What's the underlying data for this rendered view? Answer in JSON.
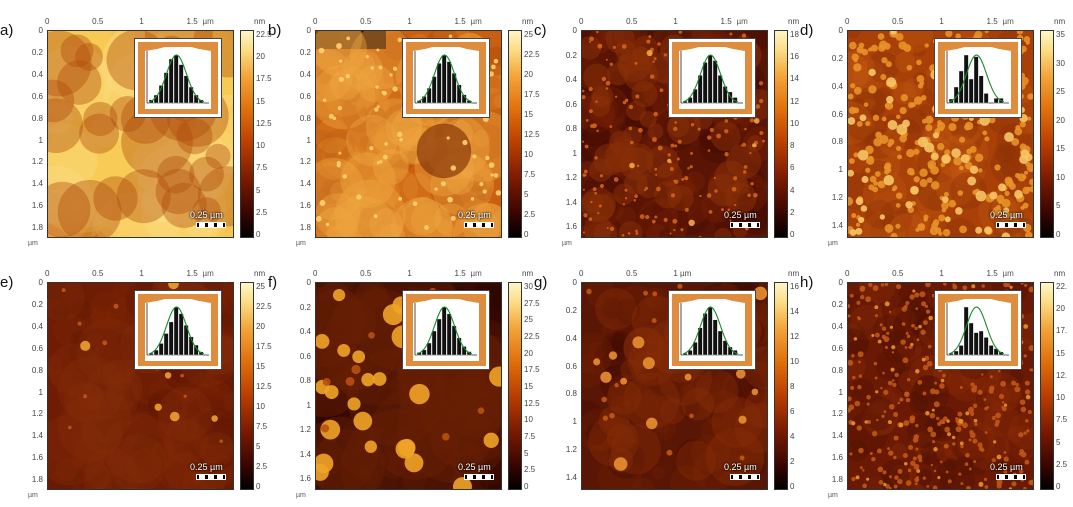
{
  "panels": [
    {
      "label": "a)",
      "x_unit_top": "µm",
      "x_unit_bottom": "µm",
      "x_ticks": [
        "0",
        "0.5",
        "1",
        "1.5"
      ],
      "y_ticks": [
        "0",
        "0.2",
        "0.4",
        "0.6",
        "0.8",
        "1",
        "1.2",
        "1.4",
        "1.6",
        "1.8"
      ],
      "cbar_unit": "nm",
      "cbar_ticks": [
        "22.5",
        "20",
        "17.5",
        "15",
        "12.5",
        "10",
        "7.5",
        "5",
        "2.5",
        "0"
      ],
      "scale_bar": "0.25 µm",
      "surface": "bright",
      "histogram": [
        4,
        10,
        22,
        38,
        55,
        60,
        48,
        34,
        20,
        10,
        4
      ]
    },
    {
      "label": "b)",
      "x_unit_top": "µm",
      "x_unit_bottom": "µm",
      "x_ticks": [
        "0",
        "0.5",
        "1",
        "1.5"
      ],
      "y_ticks": [
        "0",
        "0.2",
        "0.4",
        "0.6",
        "0.8",
        "1",
        "1.2",
        "1.4",
        "1.6",
        "1.8"
      ],
      "cbar_unit": "nm",
      "cbar_ticks": [
        "25",
        "22.5",
        "20",
        "17.5",
        "15",
        "12.5",
        "10",
        "7.5",
        "5",
        "2.5",
        "0"
      ],
      "scale_bar": "0.25 µm",
      "surface": "medium",
      "histogram": [
        3,
        8,
        18,
        32,
        48,
        58,
        50,
        36,
        22,
        10,
        3
      ]
    },
    {
      "label": "c)",
      "x_unit_top": "µm",
      "x_unit_bottom": "µm",
      "x_ticks": [
        "0",
        "0.5",
        "1",
        "1.5"
      ],
      "y_ticks": [
        "0",
        "0.2",
        "0.4",
        "0.6",
        "0.8",
        "1",
        "1.2",
        "1.4",
        "1.6"
      ],
      "cbar_unit": "nm",
      "cbar_ticks": [
        "18",
        "16",
        "14",
        "12",
        "10",
        "8",
        "6",
        "4",
        "2",
        "0"
      ],
      "scale_bar": "0.25 µm",
      "surface": "dark-grain",
      "histogram": [
        2,
        6,
        15,
        30,
        44,
        52,
        46,
        30,
        18,
        12,
        6
      ]
    },
    {
      "label": "d)",
      "x_unit_top": "µm",
      "x_unit_bottom": "µm",
      "x_ticks": [
        "0",
        "0.5",
        "1",
        "1.5"
      ],
      "y_ticks": [
        "0",
        "0.2",
        "0.4",
        "0.6",
        "0.8",
        "1",
        "1.2",
        "1.4"
      ],
      "cbar_unit": "nm",
      "cbar_ticks": [
        "35",
        "30",
        "25",
        "20",
        "15",
        "10",
        "5",
        "0"
      ],
      "scale_bar": "0.25 µm",
      "surface": "grains",
      "histogram": [
        5,
        20,
        40,
        60,
        30,
        58,
        34,
        12,
        0,
        6,
        6
      ]
    },
    {
      "label": "e)",
      "x_unit_top": "µm",
      "x_unit_bottom": "µm",
      "x_ticks": [
        "0",
        "0.5",
        "1",
        "1.5"
      ],
      "y_ticks": [
        "0",
        "0.2",
        "0.4",
        "0.6",
        "0.8",
        "1",
        "1.2",
        "1.4",
        "1.6",
        "1.8"
      ],
      "cbar_unit": "nm",
      "cbar_ticks": [
        "25",
        "22.5",
        "20",
        "17.5",
        "15",
        "12.5",
        "10",
        "7.5",
        "5",
        "2.5",
        "0"
      ],
      "scale_bar": "0.25 µm",
      "surface": "smooth-dots",
      "histogram": [
        2,
        6,
        14,
        26,
        40,
        58,
        50,
        36,
        22,
        12,
        4
      ]
    },
    {
      "label": "f)",
      "x_unit_top": "µm",
      "x_unit_bottom": "µm",
      "x_ticks": [
        "0",
        "0.5",
        "1",
        "1.5"
      ],
      "y_ticks": [
        "0",
        "0.2",
        "0.4",
        "0.6",
        "0.8",
        "1",
        "1.2",
        "1.4",
        "1.6"
      ],
      "cbar_unit": "nm",
      "cbar_ticks": [
        "30",
        "27.5",
        "25",
        "22.5",
        "20",
        "17.5",
        "15",
        "12.5",
        "10",
        "7.5",
        "5",
        "2.5",
        "0"
      ],
      "scale_bar": "0.25 µm",
      "surface": "big-dots",
      "histogram": [
        3,
        6,
        14,
        28,
        42,
        56,
        48,
        34,
        20,
        10,
        4
      ]
    },
    {
      "label": "g)",
      "x_unit_top": "µm",
      "x_unit_bottom": "",
      "x_ticks": [
        "0",
        "0.5",
        "1 µm"
      ],
      "y_ticks": [
        "0",
        "0.2",
        "0.4",
        "0.6",
        "0.8",
        "1",
        "1.2",
        "1.4"
      ],
      "cbar_unit": "nm",
      "cbar_ticks": [
        "16",
        "14",
        "12",
        "10",
        "8",
        "6",
        "4",
        "2",
        "0"
      ],
      "scale_bar": "0.25 µm",
      "surface": "few-dots",
      "histogram": [
        2,
        6,
        16,
        34,
        52,
        60,
        44,
        30,
        18,
        10,
        6
      ]
    },
    {
      "label": "h)",
      "x_unit_top": "µm",
      "x_unit_bottom": "µm",
      "x_ticks": [
        "0",
        "0.5",
        "1",
        "1.5"
      ],
      "y_ticks": [
        "0",
        "0.2",
        "0.4",
        "0.6",
        "0.8",
        "1",
        "1.2",
        "1.4",
        "1.6",
        "1.8"
      ],
      "cbar_unit": "nm",
      "cbar_ticks": [
        "22.",
        "20",
        "17.",
        "15",
        "12.",
        "10",
        "7.5",
        "5",
        "2.5",
        "0"
      ],
      "scale_bar": "0.25 µm",
      "surface": "fine-grain",
      "histogram": [
        2,
        5,
        12,
        60,
        40,
        28,
        30,
        22,
        12,
        8,
        4
      ]
    }
  ]
}
